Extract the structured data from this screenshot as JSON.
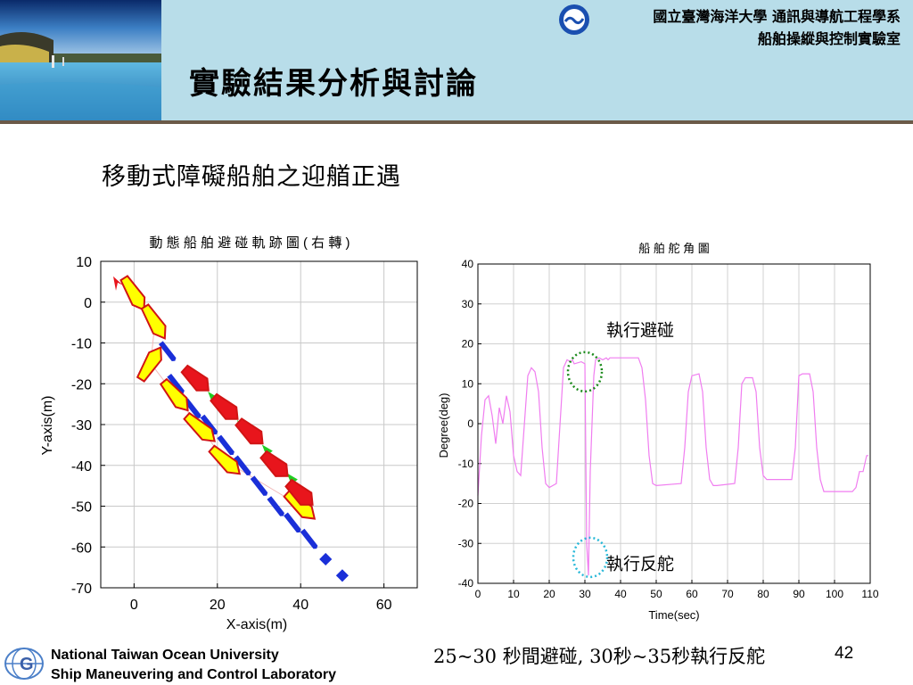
{
  "header": {
    "title": "實驗結果分析與討論",
    "university": "國立臺灣海洋大學 通訊與導航工程學系",
    "lab": "船舶操縱與控制實驗室",
    "band_color": "#b8dde9"
  },
  "subtitle": "移動式障礙船舶之迎艏正遇",
  "chart_data": [
    {
      "type": "line",
      "title": "動 態 船 舶 避 碰 軌 跡 圖 (   右 轉 )",
      "xlabel": "X-axis(m)",
      "ylabel": "Y-axis(m)",
      "xlim": [
        -8,
        68
      ],
      "ylim": [
        -70,
        10
      ],
      "xticks": [
        "0",
        "20",
        "40",
        "60"
      ],
      "yticks": [
        "10",
        "0",
        "-10",
        "-20",
        "-30",
        "-40",
        "-50",
        "-60",
        "-70"
      ],
      "grid": true,
      "series": [
        {
          "color": "#1a2fd8",
          "x": [
            8,
            10,
            14,
            18,
            22,
            26,
            30,
            34,
            38,
            42,
            46,
            50
          ],
          "y": [
            -12,
            -20,
            -26,
            -30,
            -35,
            -40,
            -45,
            -50,
            -54,
            -58,
            -63,
            -67
          ]
        },
        {
          "color": "#ffff00",
          "x": [
            0,
            5,
            4,
            10,
            16,
            22,
            40
          ],
          "y": [
            2,
            -5,
            -15,
            -23,
            -31,
            -39,
            -50
          ]
        },
        {
          "color": "#e8151c",
          "x": [
            -5,
            15,
            22,
            28,
            34,
            40
          ],
          "y": [
            5,
            -19,
            -26,
            -32,
            -40,
            -47
          ]
        },
        {
          "color": "#22cc22",
          "x": [
            19,
            26,
            32,
            38
          ],
          "y": [
            -23,
            -30,
            -36,
            -43
          ]
        }
      ]
    },
    {
      "type": "line",
      "title": "船 舶 舵 角 圖",
      "xlabel": "Time(sec)",
      "ylabel": "Degree(deg)",
      "xlim": [
        0,
        110
      ],
      "ylim": [
        -40,
        40
      ],
      "xticks": [
        "0",
        "10",
        "20",
        "30",
        "40",
        "50",
        "60",
        "70",
        "80",
        "90",
        "100",
        "110"
      ],
      "yticks": [
        "40",
        "30",
        "20",
        "10",
        "0",
        "-10",
        "-20",
        "-30",
        "-40"
      ],
      "grid": true,
      "series": [
        {
          "color": "#f07df0",
          "x": [
            0,
            1,
            2,
            3,
            4,
            5,
            6,
            7,
            8,
            9,
            10,
            11,
            12,
            14,
            15,
            16,
            17,
            18,
            19,
            20,
            22,
            24,
            25,
            26,
            26.5,
            27,
            29,
            30,
            30.5,
            31,
            31.5,
            32,
            32.5,
            33,
            34,
            35,
            36,
            36.5,
            37,
            45,
            46,
            47,
            48,
            49,
            50,
            57,
            58,
            59,
            60,
            62,
            63,
            64,
            65,
            66,
            67,
            72,
            73,
            74,
            75,
            77,
            78,
            79,
            80,
            81,
            82,
            88,
            89,
            90,
            91,
            93,
            94,
            95,
            96,
            97,
            98,
            105,
            106,
            107,
            108,
            109,
            109.5
          ],
          "y": [
            -18,
            -3,
            6,
            7,
            2,
            -5,
            4,
            0,
            7,
            3,
            -8,
            -12,
            -13,
            12,
            14,
            13,
            8,
            -6,
            -15,
            -16,
            -15,
            14,
            16,
            15.5,
            16,
            15,
            15.5,
            15,
            -30,
            -38,
            -12,
            0,
            12,
            16,
            16.5,
            16,
            16.5,
            16,
            16.5,
            16.5,
            14,
            6,
            -8,
            -15,
            -15.5,
            -15,
            -6,
            8,
            12,
            12.5,
            8,
            -6,
            -14,
            -15.5,
            -15.5,
            -15,
            -6,
            10,
            11.5,
            11.5,
            8,
            -6,
            -13,
            -14,
            -14,
            -14,
            -6,
            12,
            12.5,
            12.5,
            8,
            -6,
            -14,
            -17,
            -17,
            -17,
            -16,
            -12,
            -12,
            -8,
            -8
          ]
        }
      ],
      "annotations": [
        {
          "text": "執行避碰",
          "color": "#1a8a1a"
        },
        {
          "text": "執行反舵",
          "color": "#28b8d8"
        }
      ]
    }
  ],
  "footer": {
    "university_en": "National Taiwan Ocean University",
    "lab_en": "Ship Maneuvering and Control Laboratory",
    "caption": "25~30 秒間避碰, 30秒~35秒執行反舵",
    "page_number": "42"
  }
}
